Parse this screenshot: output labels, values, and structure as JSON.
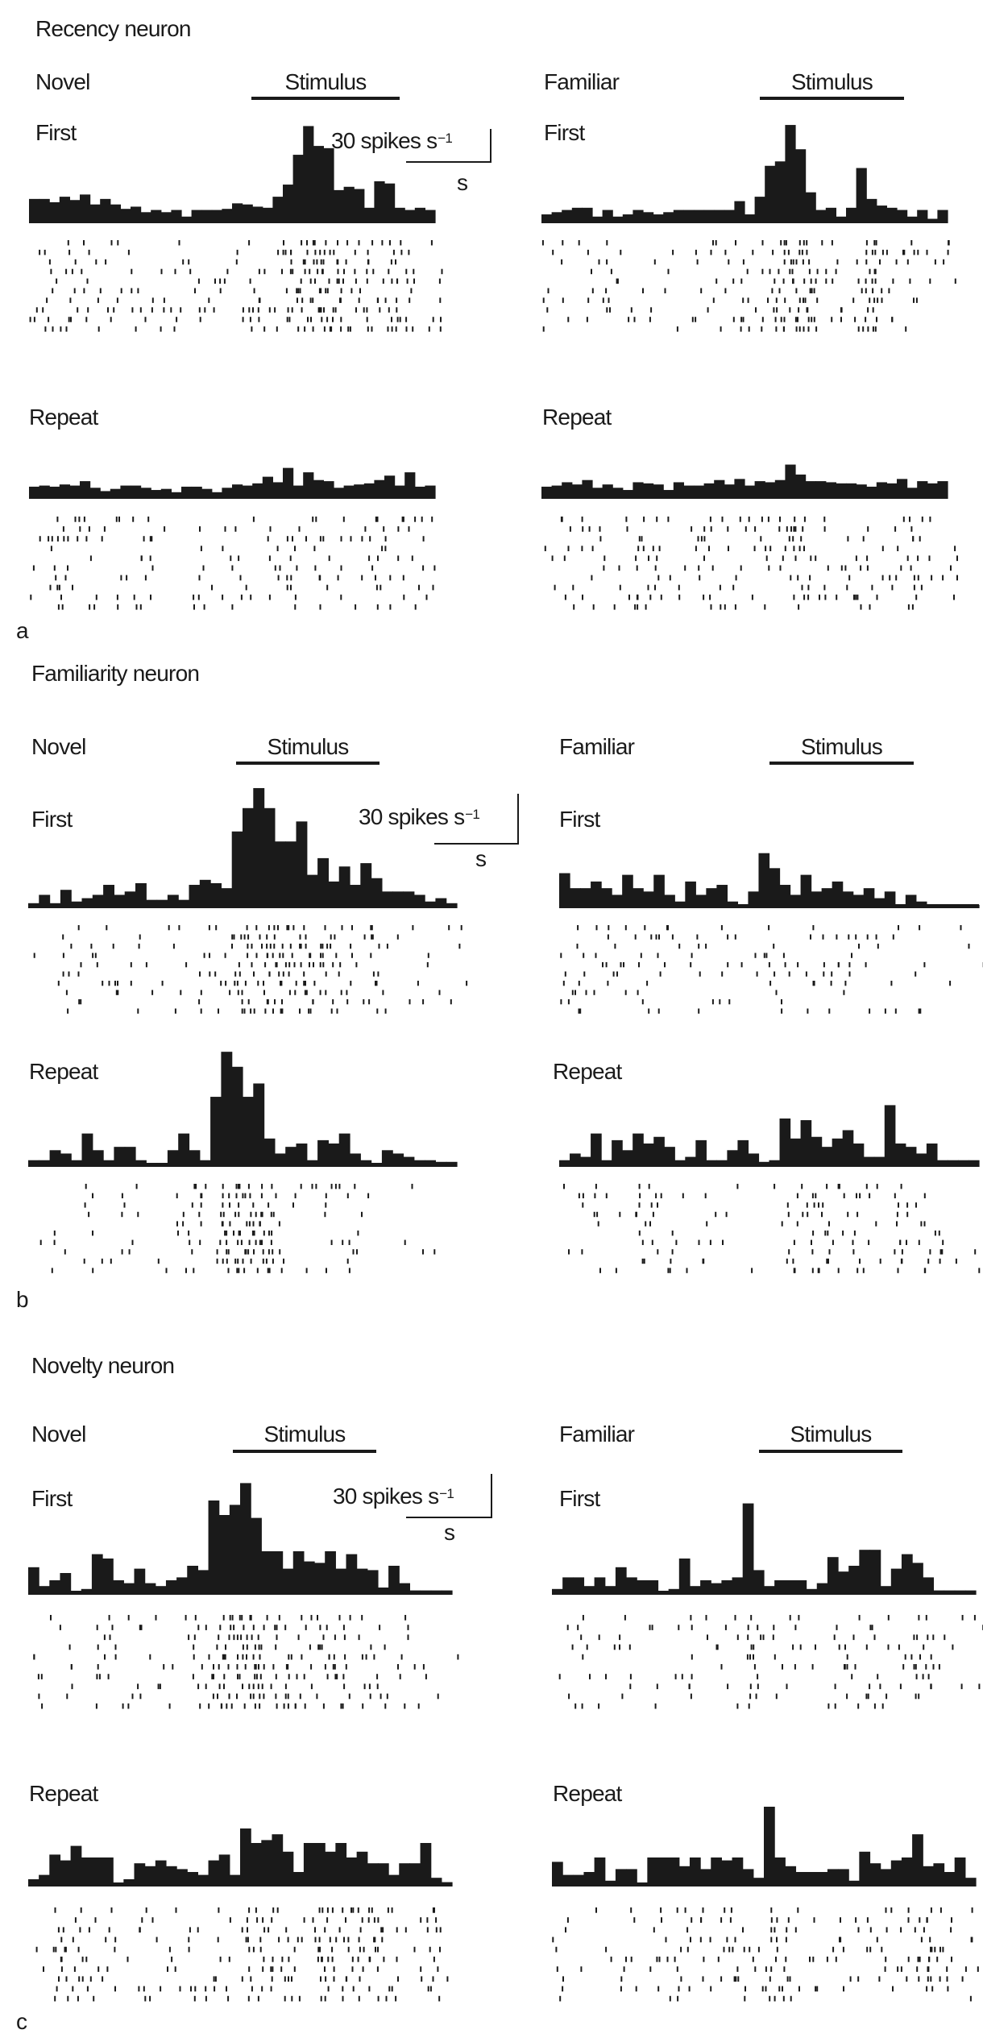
{
  "sections": [
    {
      "letter": "a",
      "title": "Recency neuron",
      "novel_label": "Novel",
      "familiar_label": "Familiar",
      "stimulus_label": "Stimulus",
      "first_label": "First",
      "repeat_label": "Repeat",
      "scale_rate_label": "30 spikes s",
      "scale_rate_exponent": "−1",
      "scale_time_label": "s"
    },
    {
      "letter": "b",
      "title": "Familiarity neuron",
      "novel_label": "Novel",
      "familiar_label": "Familiar",
      "stimulus_label": "Stimulus",
      "first_label": "First",
      "repeat_label": "Repeat",
      "scale_rate_label": "30 spikes s",
      "scale_rate_exponent": "−1",
      "scale_time_label": "s"
    },
    {
      "letter": "c",
      "title": "Novelty neuron",
      "novel_label": "Novel",
      "familiar_label": "Familiar",
      "stimulus_label": "Stimulus",
      "first_label": "First",
      "repeat_label": "Repeat",
      "scale_rate_label": "30 spikes s",
      "scale_rate_exponent": "−1",
      "scale_time_label": "s"
    }
  ],
  "chart_data": [
    {
      "type": "bar",
      "section": 0,
      "condition": "novel",
      "presentation": "first",
      "ylabel_units": "spikes s−1",
      "scale_bar_value": 30,
      "values": [
        22,
        22,
        19,
        24,
        21,
        26,
        17,
        22,
        17,
        13,
        15,
        10,
        12,
        10,
        12,
        6,
        12,
        12,
        12,
        13,
        18,
        17,
        15,
        14,
        24,
        35,
        62,
        88,
        70,
        68,
        30,
        33,
        31,
        14,
        38,
        36,
        14,
        12,
        14,
        12
      ]
    },
    {
      "type": "bar",
      "section": 0,
      "condition": "familiar",
      "presentation": "first",
      "ylabel_units": "spikes s−1",
      "scale_bar_value": 30,
      "values": [
        8,
        10,
        12,
        14,
        14,
        6,
        12,
        6,
        8,
        12,
        10,
        8,
        10,
        12,
        12,
        12,
        12,
        12,
        12,
        20,
        8,
        24,
        52,
        56,
        89,
        67,
        28,
        12,
        14,
        6,
        14,
        50,
        22,
        16,
        14,
        12,
        6,
        12,
        4,
        12
      ]
    },
    {
      "type": "bar",
      "section": 0,
      "condition": "novel",
      "presentation": "repeat",
      "ylabel_units": "spikes s−1",
      "scale_bar_value": 30,
      "values": [
        11,
        12,
        11,
        13,
        12,
        16,
        10,
        7,
        9,
        12,
        12,
        10,
        8,
        9,
        6,
        11,
        11,
        9,
        6,
        10,
        13,
        12,
        14,
        20,
        15,
        28,
        12,
        24,
        17,
        16,
        10,
        12,
        13,
        14,
        17,
        21,
        12,
        24,
        11,
        12
      ]
    },
    {
      "type": "bar",
      "section": 0,
      "condition": "familiar",
      "presentation": "repeat",
      "ylabel_units": "spikes s−1",
      "scale_bar_value": 30,
      "values": [
        11,
        12,
        15,
        13,
        17,
        10,
        13,
        10,
        8,
        15,
        14,
        13,
        8,
        15,
        12,
        12,
        14,
        17,
        13,
        18,
        12,
        16,
        15,
        17,
        31,
        22,
        16,
        16,
        15,
        14,
        14,
        13,
        11,
        15,
        14,
        18,
        10,
        16,
        14,
        16
      ]
    },
    {
      "type": "bar",
      "section": 1,
      "condition": "novel",
      "presentation": "first",
      "ylabel_units": "spikes s−1",
      "scale_bar_value": 30,
      "values": [
        3,
        8,
        3,
        11,
        4,
        6,
        8,
        14,
        8,
        10,
        15,
        5,
        5,
        8,
        5,
        14,
        17,
        15,
        12,
        46,
        60,
        72,
        60,
        40,
        40,
        52,
        20,
        30,
        16,
        25,
        14,
        27,
        18,
        10,
        10,
        10,
        8,
        4,
        6,
        3
      ]
    },
    {
      "type": "bar",
      "section": 1,
      "condition": "familiar",
      "presentation": "first",
      "ylabel_units": "spikes s−1",
      "scale_bar_value": 30,
      "values": [
        21,
        12,
        12,
        16,
        12,
        8,
        20,
        12,
        10,
        20,
        8,
        4,
        16,
        8,
        12,
        14,
        4,
        2,
        10,
        33,
        24,
        14,
        8,
        20,
        10,
        12,
        16,
        10,
        8,
        12,
        6,
        10,
        2,
        8,
        4,
        2,
        2,
        2,
        2,
        2
      ]
    },
    {
      "type": "bar",
      "section": 1,
      "condition": "novel",
      "presentation": "repeat",
      "ylabel_units": "spikes s−1",
      "scale_bar_value": 30,
      "values": [
        4,
        4,
        10,
        8,
        4,
        20,
        10,
        4,
        12,
        12,
        4,
        2,
        2,
        10,
        20,
        10,
        4,
        42,
        69,
        60,
        42,
        50,
        17,
        8,
        12,
        14,
        4,
        16,
        14,
        20,
        8,
        4,
        2,
        10,
        8,
        6,
        4,
        4,
        3,
        3
      ]
    },
    {
      "type": "bar",
      "section": 1,
      "condition": "familiar",
      "presentation": "repeat",
      "ylabel_units": "spikes s−1",
      "scale_bar_value": 30,
      "values": [
        4,
        8,
        6,
        20,
        4,
        16,
        10,
        20,
        14,
        18,
        12,
        4,
        6,
        16,
        4,
        4,
        10,
        16,
        8,
        3,
        4,
        29,
        17,
        28,
        18,
        12,
        17,
        22,
        14,
        6,
        6,
        37,
        14,
        12,
        8,
        14,
        4,
        4,
        4,
        4
      ]
    },
    {
      "type": "bar",
      "section": 2,
      "condition": "novel",
      "presentation": "first",
      "ylabel_units": "spikes s−1",
      "scale_bar_value": 30,
      "values": [
        19,
        6,
        10,
        15,
        0,
        4,
        28,
        25,
        10,
        8,
        18,
        8,
        6,
        10,
        12,
        20,
        17,
        65,
        55,
        62,
        77,
        53,
        30,
        30,
        18,
        30,
        23,
        22,
        30,
        18,
        28,
        18,
        17,
        5,
        20,
        8,
        3,
        3,
        3,
        3
      ]
    },
    {
      "type": "bar",
      "section": 2,
      "condition": "familiar",
      "presentation": "first",
      "ylabel_units": "spikes s−1",
      "scale_bar_value": 30,
      "values": [
        4,
        12,
        12,
        6,
        12,
        6,
        19,
        12,
        10,
        10,
        0,
        4,
        25,
        6,
        10,
        8,
        10,
        12,
        63,
        17,
        6,
        10,
        10,
        10,
        4,
        8,
        26,
        16,
        20,
        31,
        31,
        6,
        18,
        28,
        22,
        12,
        3,
        3,
        3,
        3
      ]
    },
    {
      "type": "bar",
      "section": 2,
      "condition": "novel",
      "presentation": "repeat",
      "ylabel_units": "spikes s−1",
      "scale_bar_value": 30,
      "values": [
        5,
        8,
        22,
        18,
        28,
        20,
        20,
        20,
        0,
        5,
        16,
        14,
        18,
        14,
        12,
        10,
        8,
        18,
        22,
        8,
        40,
        30,
        32,
        36,
        24,
        10,
        30,
        30,
        24,
        30,
        20,
        24,
        16,
        16,
        8,
        16,
        16,
        30,
        6,
        3
      ]
    },
    {
      "type": "bar",
      "section": 2,
      "condition": "familiar",
      "presentation": "repeat",
      "ylabel_units": "spikes s−1",
      "scale_bar_value": 30,
      "values": [
        17,
        8,
        8,
        10,
        20,
        4,
        12,
        12,
        0,
        20,
        20,
        20,
        14,
        20,
        12,
        20,
        18,
        20,
        12,
        6,
        55,
        20,
        14,
        10,
        10,
        10,
        12,
        12,
        4,
        24,
        16,
        12,
        18,
        20,
        36,
        14,
        16,
        10,
        20,
        6
      ]
    }
  ],
  "colors": {
    "ink": "#1a1a1a",
    "background": "#ffffff"
  }
}
